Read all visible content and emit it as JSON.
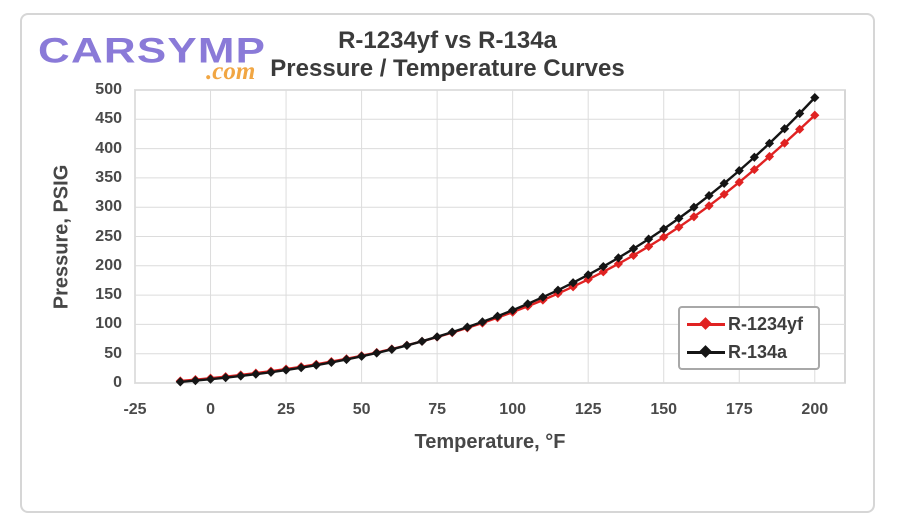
{
  "branding": {
    "name": "CARSYMP",
    "domain": ".com",
    "name_color": "#8a7ad8",
    "domain_color": "#f1a643"
  },
  "chart": {
    "title_line1": "R-1234yf vs R-134a",
    "title_line2": "Pressure / Temperature Curves"
  },
  "chart_data": {
    "type": "line",
    "title": "R-1234yf vs R-134a Pressure / Temperature Curves",
    "xlabel": "Temperature, °F",
    "ylabel": "Pressure, PSIG",
    "xlim": [
      -25,
      210
    ],
    "ylim": [
      0,
      500
    ],
    "x_ticks": [
      -25,
      0,
      25,
      50,
      75,
      100,
      125,
      150,
      175,
      200
    ],
    "y_ticks": [
      0,
      50,
      100,
      150,
      200,
      250,
      300,
      350,
      400,
      450,
      500
    ],
    "grid": true,
    "legend_position": "inside bottom-right",
    "grid_color": "#dcdcdc",
    "plot_border_color": "#c9c9c9",
    "x": [
      -10,
      -5,
      0,
      5,
      10,
      15,
      20,
      25,
      30,
      35,
      40,
      45,
      50,
      55,
      60,
      65,
      70,
      75,
      80,
      85,
      90,
      95,
      100,
      105,
      110,
      115,
      120,
      125,
      130,
      135,
      140,
      145,
      150,
      155,
      160,
      165,
      170,
      175,
      180,
      185,
      190,
      195,
      200
    ],
    "series": [
      {
        "name": "R-1234yf",
        "color": "#e02222",
        "marker": "diamond",
        "values": [
          3.5,
          5.7,
          8.2,
          10.8,
          13.8,
          16.9,
          20.2,
          23.8,
          27.7,
          31.9,
          36.5,
          41.3,
          46.5,
          52.0,
          58.0,
          64.4,
          71.1,
          78.4,
          86.0,
          94.0,
          102.4,
          111.5,
          121.0,
          131.0,
          141.5,
          152.6,
          164.3,
          176.7,
          189.7,
          203.3,
          217.8,
          233.0,
          249.0,
          265.9,
          283.7,
          302.4,
          322.0,
          342.6,
          364.2,
          386.5,
          409.4,
          432.9,
          457.0
        ]
      },
      {
        "name": "R-134a",
        "color": "#151515",
        "marker": "diamond",
        "values": [
          1.9,
          4.1,
          6.5,
          9.1,
          12.0,
          15.1,
          18.4,
          22.1,
          26.1,
          30.4,
          35.1,
          40.1,
          45.5,
          51.2,
          57.4,
          64.1,
          71.1,
          78.8,
          86.8,
          95.3,
          104.3,
          114.0,
          124.2,
          135.0,
          146.4,
          158.4,
          171.1,
          184.6,
          198.7,
          213.5,
          229.2,
          245.6,
          262.8,
          280.9,
          299.9,
          319.8,
          340.6,
          362.4,
          385.2,
          409.0,
          433.9,
          459.9,
          487.0
        ]
      }
    ]
  }
}
